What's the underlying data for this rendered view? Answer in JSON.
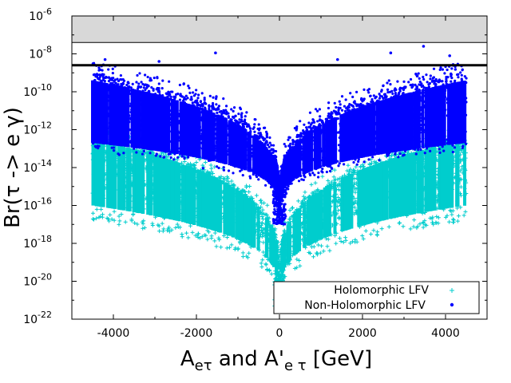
{
  "chart_data": {
    "type": "scatter",
    "title": "",
    "xlabel": {
      "main": "A",
      "sub1": "eτ",
      "mid": " and A'",
      "sub2": "e τ",
      "tail": "  [GeV]"
    },
    "ylabel": "Br(τ -> e γ)",
    "xlim": [
      -5000,
      5000
    ],
    "ylim_log10": [
      -22,
      -6
    ],
    "x_ticks": [
      -4000,
      -2000,
      0,
      2000,
      4000
    ],
    "x_tick_labels": [
      "-4000",
      "-2000",
      "0",
      "2000",
      "4000"
    ],
    "y_ticks_log10": [
      -22,
      -20,
      -18,
      -16,
      -14,
      -12,
      -10,
      -8,
      -6
    ],
    "y_tick_labels": [
      {
        "base": "10",
        "exp": "-22"
      },
      {
        "base": "10",
        "exp": "-20"
      },
      {
        "base": "10",
        "exp": "-18"
      },
      {
        "base": "10",
        "exp": "-16"
      },
      {
        "base": "10",
        "exp": "-14"
      },
      {
        "base": "10",
        "exp": "-12"
      },
      {
        "base": "10",
        "exp": "-10"
      },
      {
        "base": "10",
        "exp": "-8"
      },
      {
        "base": "10",
        "exp": "-6"
      }
    ],
    "excluded_region_log10": [
      -7.4,
      -6
    ],
    "bound_line_log10": -8.6,
    "bound_line_2_log10": -7.4,
    "x_data_range": [
      -4500,
      4500
    ],
    "series": [
      {
        "name": "Holomorphic LFV",
        "marker": "plus",
        "color": "#00cdcd",
        "upper_log10_at_edge": -12.3,
        "lower_log10_at_edge": -16.3,
        "min_log10_at_zero": -21.5,
        "scatter_outliers": [
          [
            1200,
            -10.1
          ],
          [
            -2000,
            -10.4
          ],
          [
            3500,
            -9.1
          ]
        ]
      },
      {
        "name": "Non-Holomorphic LFV",
        "marker": "dot",
        "color": "#0000ff",
        "upper_log10_at_edge": -9.0,
        "lower_log10_at_edge": -13.2,
        "min_log10_at_zero": -17.0,
        "outliers": [
          [
            -1540,
            -7.95
          ],
          [
            2680,
            -7.95
          ],
          [
            3470,
            -7.6
          ],
          [
            -4200,
            -8.3
          ],
          [
            4100,
            -8.1
          ],
          [
            -2900,
            -8.4
          ],
          [
            1400,
            -8.3
          ]
        ]
      }
    ],
    "legend_position": "bottom-right"
  }
}
